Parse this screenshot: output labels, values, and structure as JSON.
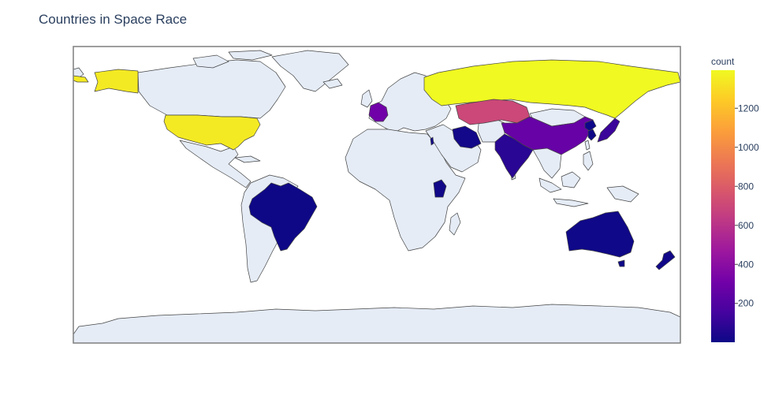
{
  "chart_data": {
    "type": "choropleth",
    "title": "Countries in Space Race",
    "colorbar": {
      "title": "count",
      "range": [
        1,
        1395
      ],
      "tickvals": [
        200,
        400,
        600,
        800,
        1000,
        1200
      ],
      "ticklabels": [
        "200",
        "400",
        "600",
        "800",
        "1000",
        "1200"
      ],
      "colorscale": [
        "#0d0887",
        "#46039f",
        "#7201a8",
        "#9c179e",
        "#bd3786",
        "#d8576b",
        "#ed7953",
        "#fb9f3a",
        "#fdca26",
        "#f0f921"
      ]
    },
    "geo": {
      "land_color": "#e5ecf6",
      "coastline_color": "#444444",
      "frame_color": "#7f7f7f",
      "ocean_color": "#ffffff"
    },
    "countries": [
      {
        "name": "Russia",
        "value": 1395
      },
      {
        "name": "USA",
        "value": 1344
      },
      {
        "name": "Kazakhstan",
        "value": 701
      },
      {
        "name": "France",
        "value": 303
      },
      {
        "name": "China",
        "value": 268
      },
      {
        "name": "Japan",
        "value": 126
      },
      {
        "name": "India",
        "value": 76
      },
      {
        "name": "Iran",
        "value": 14
      },
      {
        "name": "New Zealand",
        "value": 13
      },
      {
        "name": "Israel",
        "value": 11
      },
      {
        "name": "Kenya",
        "value": 9
      },
      {
        "name": "Australia",
        "value": 6
      },
      {
        "name": "North Korea",
        "value": 5
      },
      {
        "name": "South Korea",
        "value": 3
      },
      {
        "name": "Brazil",
        "value": 3
      }
    ]
  }
}
